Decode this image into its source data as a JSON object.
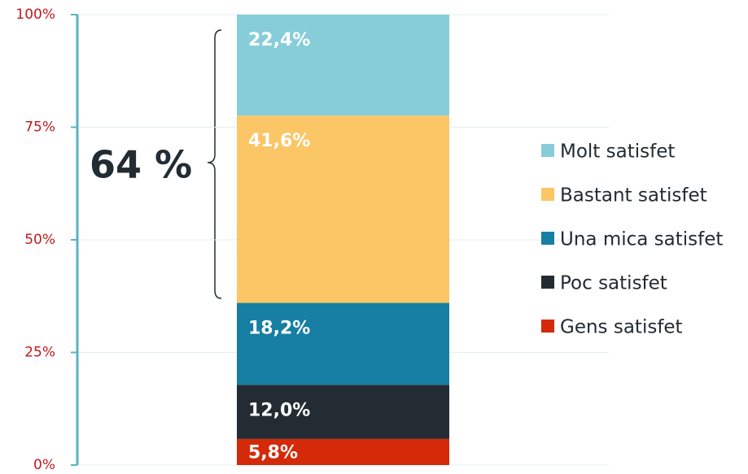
{
  "chart_data": {
    "type": "stacked_bar",
    "categories": [
      null
    ],
    "series": [
      {
        "name": "Gens satisfet",
        "color": "#d42a0a",
        "values": [
          5.8
        ],
        "value_labels": [
          "5,8%"
        ]
      },
      {
        "name": "Poc satisfet",
        "color": "#232b33",
        "values": [
          12.0
        ],
        "value_labels": [
          "12,0%"
        ]
      },
      {
        "name": "Una mica satisfet",
        "color": "#167fa3",
        "values": [
          18.2
        ],
        "value_labels": [
          "18,2%"
        ]
      },
      {
        "name": "Bastant satisfet",
        "color": "#fbc666",
        "values": [
          41.6
        ],
        "value_labels": [
          "41,6%"
        ]
      },
      {
        "name": "Molt satisfet",
        "color": "#86cdd9",
        "values": [
          22.4
        ],
        "value_labels": [
          "22,4%"
        ]
      }
    ],
    "ylim": [
      0,
      100
    ],
    "yticks": [
      {
        "value": 0,
        "label": "0%"
      },
      {
        "value": 25,
        "label": "25%"
      },
      {
        "value": 50,
        "label": "50%"
      },
      {
        "value": 75,
        "label": "75%"
      },
      {
        "value": 100,
        "label": "100%"
      }
    ],
    "grid": true,
    "legend": "right",
    "annotation": "64 %"
  }
}
